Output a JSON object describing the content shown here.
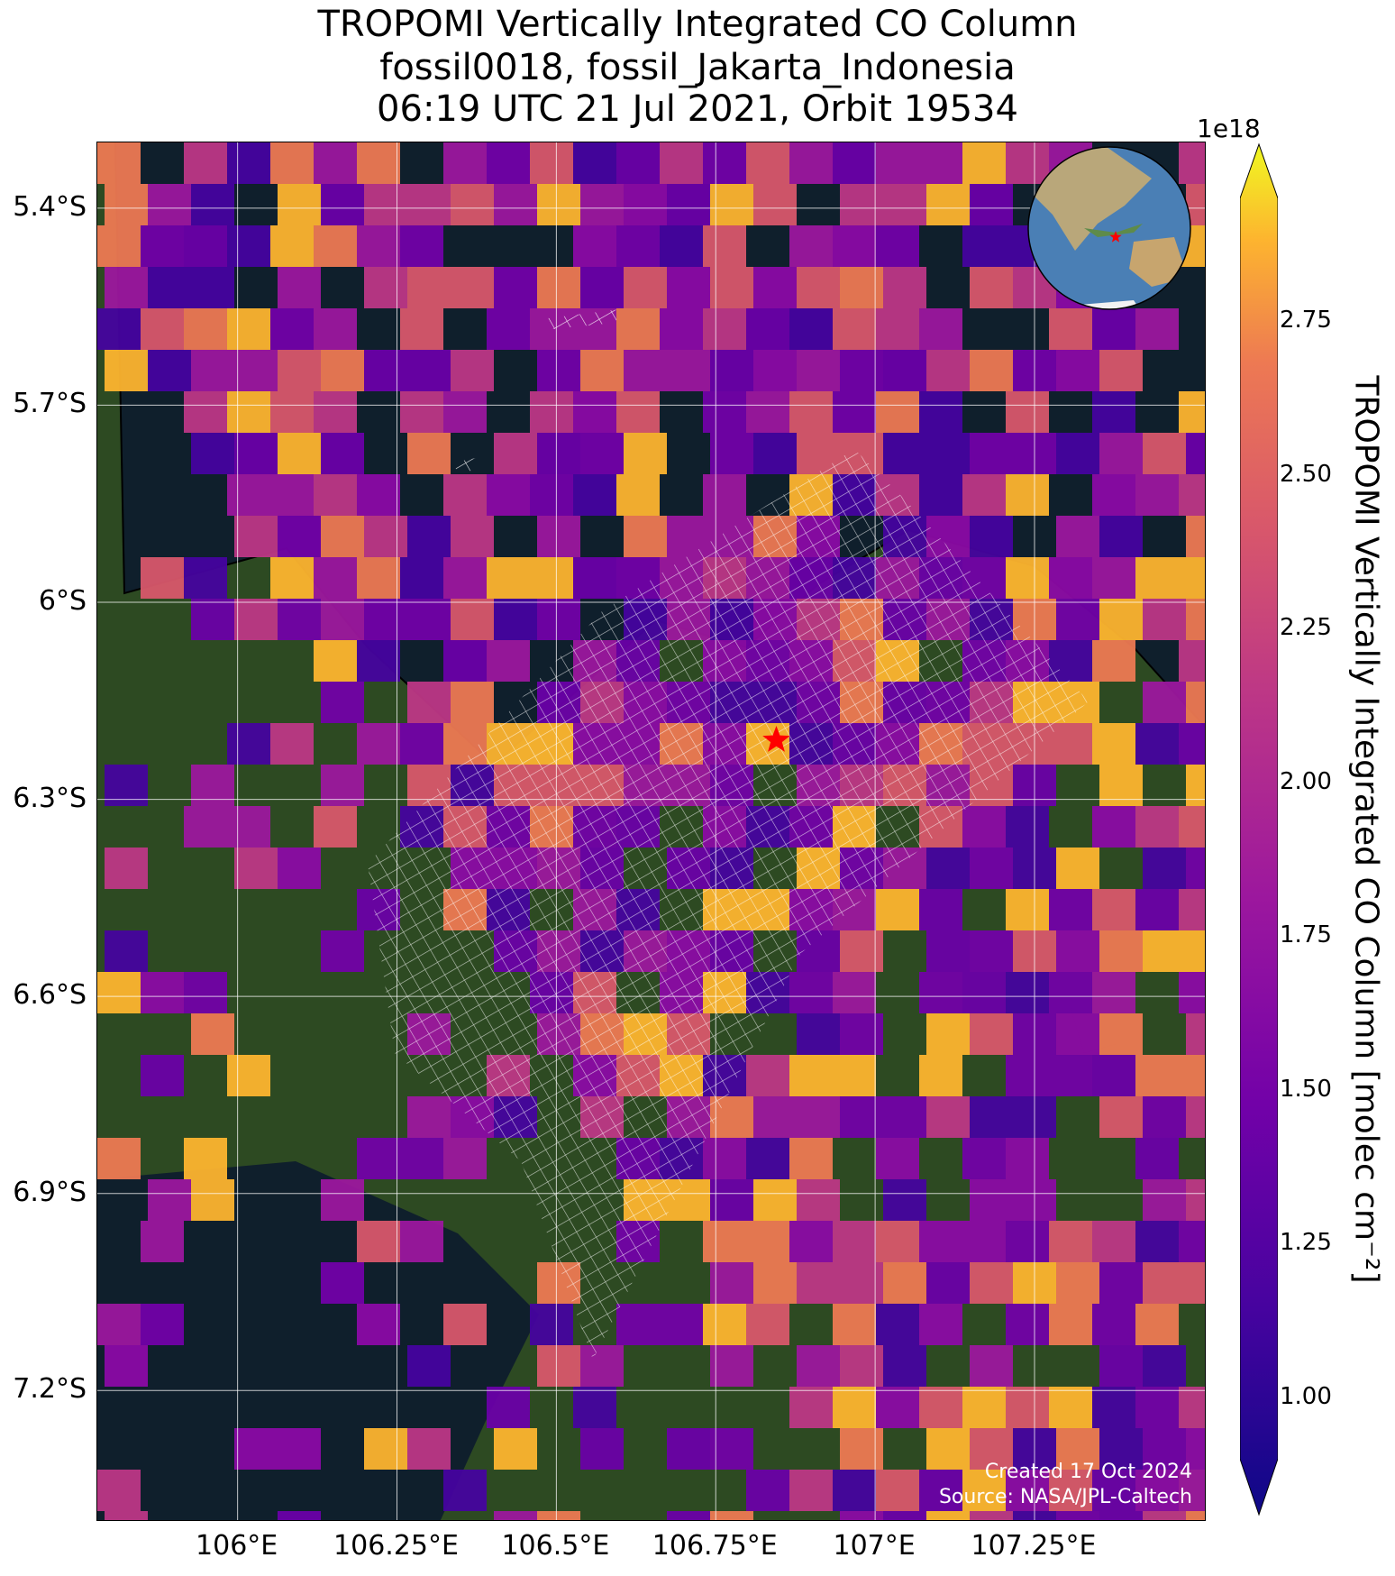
{
  "title": {
    "line1": "TROPOMI Vertically Integrated CO Column",
    "line2": "fossil0018, fossil_Jakarta_Indonesia",
    "line3": "06:19 UTC 21 Jul 2021, Orbit 19534"
  },
  "map": {
    "lon_range": [
      105.78,
      107.52
    ],
    "lat_range": [
      -7.4,
      -5.3
    ],
    "lon_ticks": [
      "106°E",
      "106.25°E",
      "106.5°E",
      "106.75°E",
      "107°E",
      "107.25°E"
    ],
    "lat_ticks": [
      "5.4°S",
      "5.7°S",
      "6°S",
      "6.3°S",
      "6.6°S",
      "6.9°S",
      "7.2°S"
    ],
    "target": {
      "lon": 106.845,
      "lat": -6.21,
      "marker": "red-star-icon"
    },
    "background": "satellite-imagery",
    "ocean_color": "#0f1f2c",
    "land_color": "#2d4a22",
    "gridlines": true,
    "inset_globe": {
      "center": "Indonesia",
      "marker": "red-star-icon"
    }
  },
  "colorbar": {
    "label": "TROPOMI Vertically Integrated CO Column [molec cm⁻²]",
    "exponent": "1e18",
    "ticks": [
      "1.00",
      "1.25",
      "1.50",
      "1.75",
      "2.00",
      "2.25",
      "2.50",
      "2.75"
    ],
    "range": [
      0.9,
      2.95
    ],
    "colormap": "plasma",
    "extend": "both"
  },
  "credits": {
    "created": "Created 17 Oct 2024",
    "source": "Source: NASA/JPL-Caltech"
  }
}
